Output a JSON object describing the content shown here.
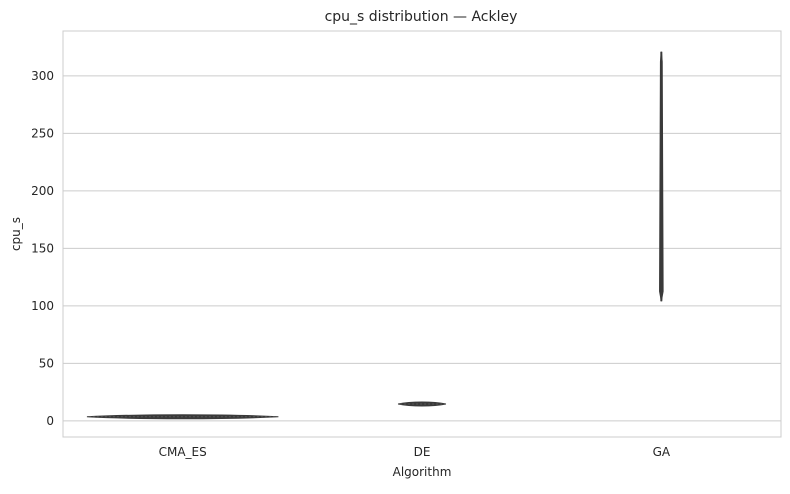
{
  "chart_data": {
    "type": "violin",
    "title": "cpu_s distribution — Ackley",
    "xlabel": "Algorithm",
    "ylabel": "cpu_s",
    "categories": [
      "CMA_ES",
      "DE",
      "GA"
    ],
    "series": [
      {
        "category": "CMA_ES",
        "min": 3.2,
        "q1": 3.4,
        "median": 3.6,
        "q3": 3.8,
        "max": 4.0
      },
      {
        "category": "DE",
        "min": 13.8,
        "q1": 14.3,
        "median": 14.7,
        "q3": 15.1,
        "max": 15.7
      },
      {
        "category": "GA",
        "min": 104,
        "q1": 110,
        "median": 125,
        "q3": 200,
        "max": 321
      }
    ],
    "ylim": [
      -14,
      339
    ],
    "yticks": [
      0,
      50,
      100,
      150,
      200,
      250,
      300
    ],
    "grid": true,
    "colors": {
      "grid": "#cccccc",
      "axes": "#cccccc",
      "violin_edge": "#3a3a3a",
      "text": "#262626"
    }
  }
}
